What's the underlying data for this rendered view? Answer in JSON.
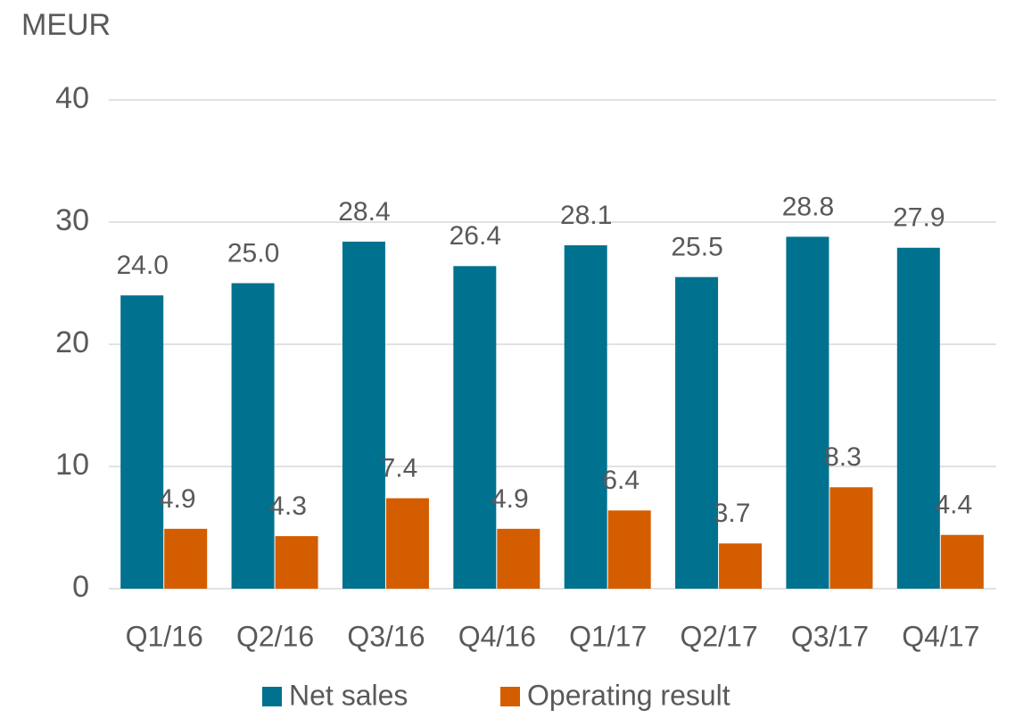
{
  "chart_data": {
    "type": "bar",
    "y_label": "MEUR",
    "categories": [
      "Q1/16",
      "Q2/16",
      "Q3/16",
      "Q4/16",
      "Q1/17",
      "Q2/17",
      "Q3/17",
      "Q4/17"
    ],
    "series": [
      {
        "name": "Net sales",
        "color": "#00718f",
        "values": [
          24.0,
          25.0,
          28.4,
          26.4,
          28.1,
          25.5,
          28.8,
          27.9
        ],
        "value_labels": [
          "24.0",
          "25.0",
          "28.4",
          "26.4",
          "28.1",
          "25.5",
          "28.8",
          "27.9"
        ]
      },
      {
        "name": "Operating result",
        "color": "#d45d00",
        "values": [
          4.9,
          4.3,
          7.4,
          4.9,
          6.4,
          3.7,
          8.3,
          4.4
        ],
        "value_labels": [
          "4.9",
          "4.3",
          "7.4",
          "4.9",
          "6.4",
          "3.7",
          "8.3",
          "4.4"
        ]
      }
    ],
    "ylim": [
      0,
      40
    ],
    "yticks": [
      0,
      10,
      20,
      30,
      40
    ],
    "grid": true,
    "legend": "bottom"
  }
}
